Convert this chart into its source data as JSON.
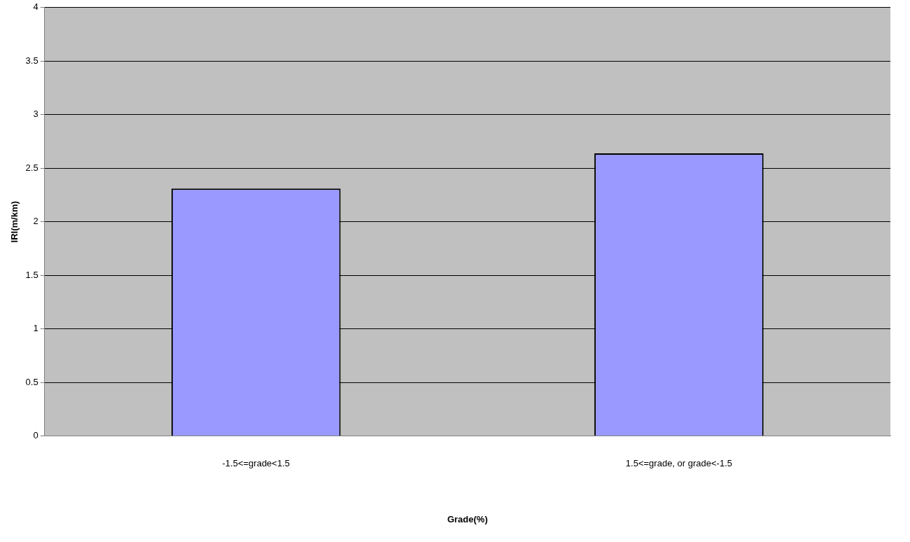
{
  "chart_data": {
    "type": "bar",
    "xlabel": "Grade(%)",
    "ylabel": "IRI(m/km)",
    "categories": [
      "-1.5<=grade<1.5",
      "1.5<=grade, or grade<-1.5"
    ],
    "values": [
      2.31,
      2.64
    ],
    "color": "#9999ff",
    "ylim": [
      0,
      4
    ],
    "yticks": [
      0,
      0.5,
      1,
      1.5,
      2,
      2.5,
      3,
      3.5,
      4
    ],
    "grid": "y",
    "legend": false
  }
}
